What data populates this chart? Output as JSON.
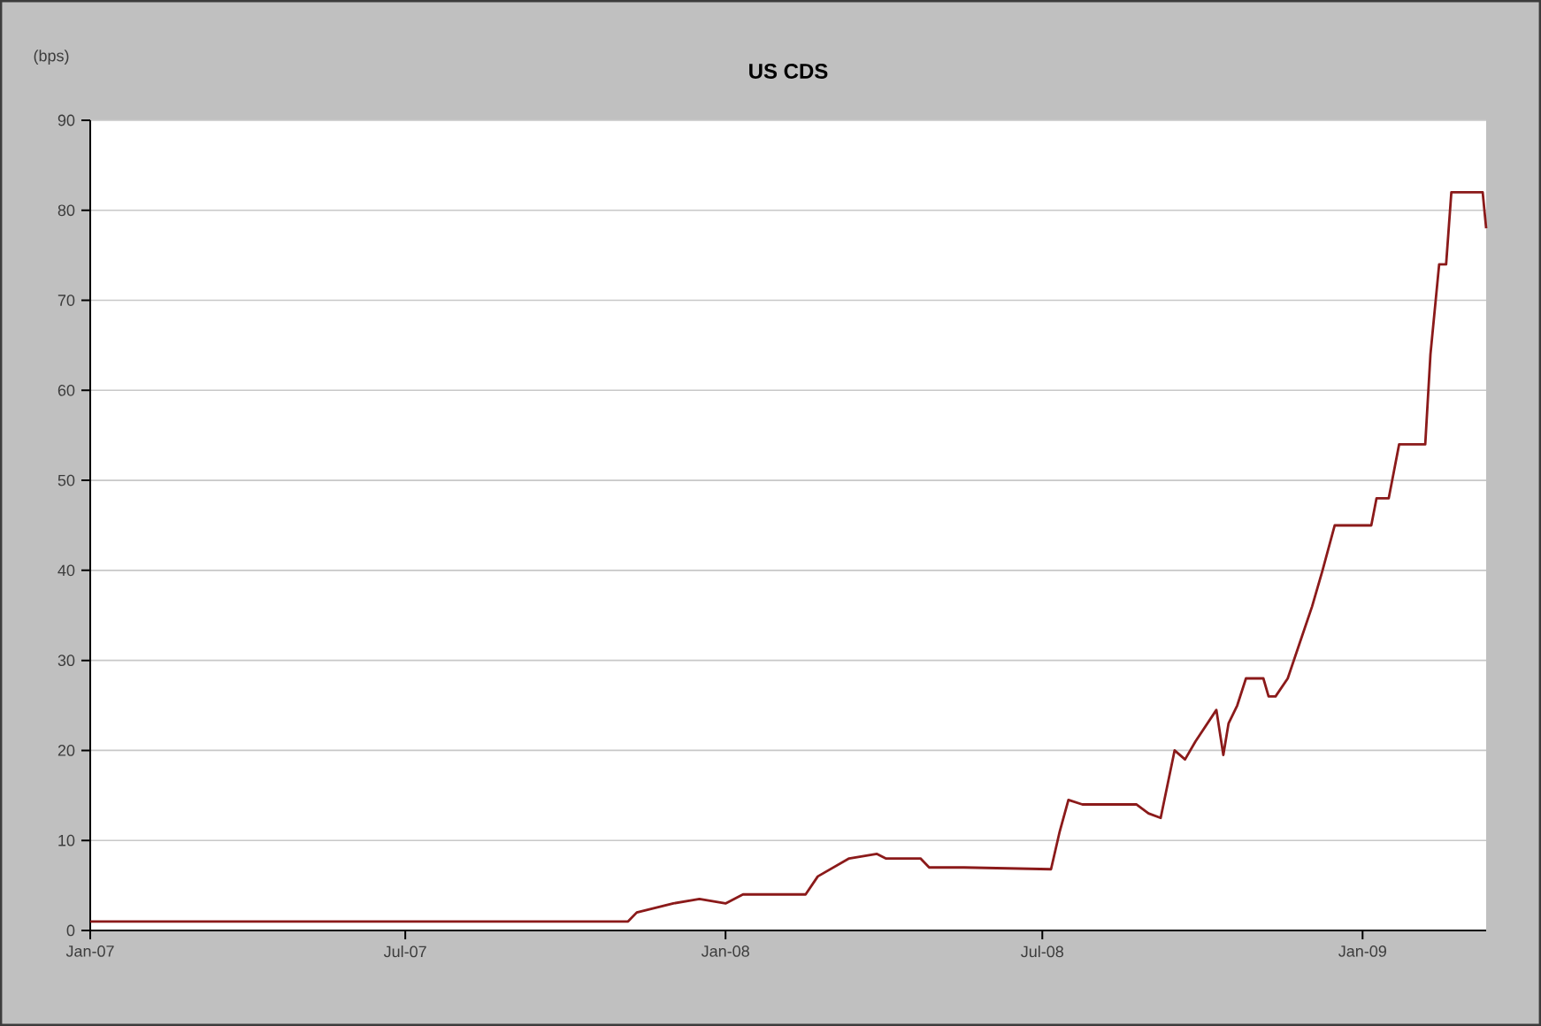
{
  "chart_data": {
    "type": "line",
    "title": "US CDS",
    "ylabel": "(bps)",
    "x": [
      "2007-01-01",
      "2007-11-06",
      "2007-11-11",
      "2007-12-02",
      "2007-12-17",
      "2008-01-01",
      "2008-01-11",
      "2008-02-16",
      "2008-02-23",
      "2008-03-12",
      "2008-03-28",
      "2008-04-02",
      "2008-04-22",
      "2008-04-27",
      "2008-05-17",
      "2008-07-06",
      "2008-07-11",
      "2008-07-16",
      "2008-07-24",
      "2008-08-24",
      "2008-08-31",
      "2008-09-07",
      "2008-09-15",
      "2008-09-21",
      "2008-09-27",
      "2008-10-09",
      "2008-10-13",
      "2008-10-16",
      "2008-10-21",
      "2008-10-26",
      "2008-11-05",
      "2008-11-08",
      "2008-11-12",
      "2008-11-19",
      "2008-11-26",
      "2008-12-03",
      "2008-12-09",
      "2008-12-16",
      "2009-01-06",
      "2009-01-09",
      "2009-01-16",
      "2009-01-19",
      "2009-01-22",
      "2009-02-06",
      "2009-02-09",
      "2009-02-14",
      "2009-02-18",
      "2009-02-21",
      "2009-03-11",
      "2009-03-13"
    ],
    "series": [
      {
        "color": "#8b1a1a",
        "values": [
          1,
          1,
          2,
          3,
          3.5,
          3,
          4,
          4,
          6,
          8,
          8.5,
          8,
          8,
          7,
          7,
          6.8,
          11,
          14.5,
          14,
          14,
          13,
          12.5,
          20,
          19,
          21,
          24.5,
          19.5,
          23,
          25,
          28,
          28,
          26,
          26,
          28,
          32,
          36,
          40,
          45,
          45,
          48,
          48,
          51,
          54,
          54,
          64,
          74,
          74,
          82,
          82,
          78
        ]
      }
    ],
    "xlim": [
      "2007-01-01",
      "2009-03-13"
    ],
    "xticks": [
      {
        "value": "2007-01-01",
        "label": "Jan-07"
      },
      {
        "value": "2007-07-01",
        "label": "Jul-07"
      },
      {
        "value": "2008-01-01",
        "label": "Jan-08"
      },
      {
        "value": "2008-07-01",
        "label": "Jul-08"
      },
      {
        "value": "2009-01-01",
        "label": "Jan-09"
      }
    ],
    "ylim": [
      0,
      90
    ],
    "yticks": [
      0,
      10,
      20,
      30,
      40,
      50,
      60,
      70,
      80,
      90
    ],
    "grid": "y",
    "marker": "none",
    "line_style": "solid"
  }
}
